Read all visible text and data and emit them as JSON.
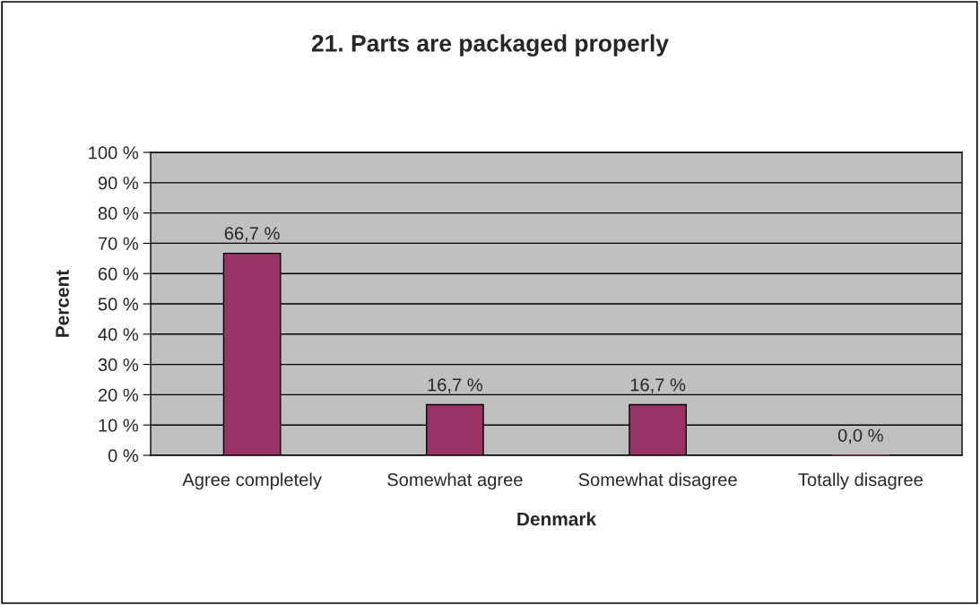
{
  "chart_data": {
    "type": "bar",
    "title": "21. Parts are packaged properly",
    "xlabel": "Denmark",
    "ylabel": "Percent",
    "categories": [
      "Agree completely",
      "Somewhat agree",
      "Somewhat disagree",
      "Totally disagree"
    ],
    "values": [
      66.7,
      16.7,
      16.7,
      0.0
    ],
    "value_labels": [
      "66,7 %",
      "16,7 %",
      "16,7 %",
      "0,0 %"
    ],
    "color": "#993366",
    "ylim": [
      0,
      100
    ],
    "yticks": [
      {
        "value": 0,
        "label": "0 %"
      },
      {
        "value": 10,
        "label": "10 %"
      },
      {
        "value": 20,
        "label": "20 %"
      },
      {
        "value": 30,
        "label": "30 %"
      },
      {
        "value": 40,
        "label": "40 %"
      },
      {
        "value": 50,
        "label": "50 %"
      },
      {
        "value": 60,
        "label": "60 %"
      },
      {
        "value": 70,
        "label": "70 %"
      },
      {
        "value": 80,
        "label": "80 %"
      },
      {
        "value": 90,
        "label": "90 %"
      },
      {
        "value": 100,
        "label": "100 %"
      }
    ],
    "grid": "y",
    "legend": false
  }
}
